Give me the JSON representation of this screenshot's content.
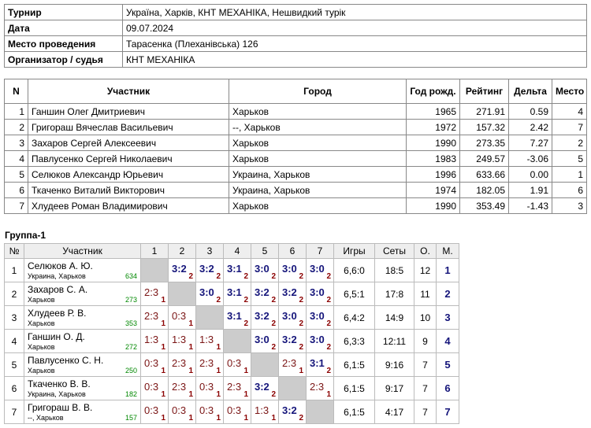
{
  "info": {
    "rows": [
      [
        "Турнир",
        "Україна, Харків, КНТ МЕХАНІКА, Нешвидкий турік"
      ],
      [
        "Дата",
        "09.07.2024"
      ],
      [
        "Место проведения",
        "Тарасенка (Плеханівська) 126"
      ],
      [
        "Организатор / судья",
        "КНТ МЕХАНІКА"
      ]
    ]
  },
  "participants": {
    "header": [
      "N",
      "Участник",
      "Город",
      "Год рожд.",
      "Рейтинг",
      "Дельта",
      "Место"
    ],
    "rows": [
      [
        "1",
        "Ганшин Олег Дмитриевич",
        "Харьков",
        "1965",
        "271.91",
        "0.59",
        "4"
      ],
      [
        "2",
        "Григораш Вячеслав Васильевич",
        "--, Харьков",
        "1972",
        "157.32",
        "2.42",
        "7"
      ],
      [
        "3",
        "Захаров Сергей Алексеевич",
        "Харьков",
        "1990",
        "273.35",
        "7.27",
        "2"
      ],
      [
        "4",
        "Павлусенко Сергей Николаевич",
        "Харьков",
        "1983",
        "249.57",
        "-3.06",
        "5"
      ],
      [
        "5",
        "Селюков Александр Юрьевич",
        "Украина, Харьков",
        "1996",
        "633.66",
        "0.00",
        "1"
      ],
      [
        "6",
        "Ткаченко Виталий Викторович",
        "Украина, Харьков",
        "1974",
        "182.05",
        "1.91",
        "6"
      ],
      [
        "7",
        "Хлудеев Роман Владимирович",
        "Харьков",
        "1990",
        "353.49",
        "-1.43",
        "3"
      ]
    ]
  },
  "group": {
    "title": "Группа-1",
    "header": [
      "№",
      "Участник",
      "1",
      "2",
      "3",
      "4",
      "5",
      "6",
      "7",
      "Игры",
      "Сеты",
      "О.",
      "М."
    ],
    "rows": [
      {
        "n": "1",
        "name": "Селюков А. Ю.",
        "city": "Украина, Харьков",
        "rating": "634",
        "cells": [
          null,
          [
            "3:2",
            "2"
          ],
          [
            "3:2",
            "2"
          ],
          [
            "3:1",
            "2"
          ],
          [
            "3:0",
            "2"
          ],
          [
            "3:0",
            "2"
          ],
          [
            "3:0",
            "2"
          ]
        ],
        "games": "6,6:0",
        "sets": "18:5",
        "points": "12",
        "place": "1"
      },
      {
        "n": "2",
        "name": "Захаров С. А.",
        "city": "Харьков",
        "rating": "273",
        "cells": [
          [
            "2:3",
            "1"
          ],
          null,
          [
            "3:0",
            "2"
          ],
          [
            "3:1",
            "2"
          ],
          [
            "3:2",
            "2"
          ],
          [
            "3:2",
            "2"
          ],
          [
            "3:0",
            "2"
          ]
        ],
        "games": "6,5:1",
        "sets": "17:8",
        "points": "11",
        "place": "2"
      },
      {
        "n": "3",
        "name": "Хлудеев Р. В.",
        "city": "Харьков",
        "rating": "353",
        "cells": [
          [
            "2:3",
            "1"
          ],
          [
            "0:3",
            "1"
          ],
          null,
          [
            "3:1",
            "2"
          ],
          [
            "3:2",
            "2"
          ],
          [
            "3:0",
            "2"
          ],
          [
            "3:0",
            "2"
          ]
        ],
        "games": "6,4:2",
        "sets": "14:9",
        "points": "10",
        "place": "3"
      },
      {
        "n": "4",
        "name": "Ганшин О. Д.",
        "city": "Харьков",
        "rating": "272",
        "cells": [
          [
            "1:3",
            "1"
          ],
          [
            "1:3",
            "1"
          ],
          [
            "1:3",
            "1"
          ],
          null,
          [
            "3:0",
            "2"
          ],
          [
            "3:2",
            "2"
          ],
          [
            "3:0",
            "2"
          ]
        ],
        "games": "6,3:3",
        "sets": "12:11",
        "points": "9",
        "place": "4"
      },
      {
        "n": "5",
        "name": "Павлусенко С. Н.",
        "city": "Харьков",
        "rating": "250",
        "cells": [
          [
            "0:3",
            "1"
          ],
          [
            "2:3",
            "1"
          ],
          [
            "2:3",
            "1"
          ],
          [
            "0:3",
            "1"
          ],
          null,
          [
            "2:3",
            "1"
          ],
          [
            "3:1",
            "2"
          ]
        ],
        "games": "6,1:5",
        "sets": "9:16",
        "points": "7",
        "place": "5"
      },
      {
        "n": "6",
        "name": "Ткаченко В. В.",
        "city": "Украина, Харьков",
        "rating": "182",
        "cells": [
          [
            "0:3",
            "1"
          ],
          [
            "2:3",
            "1"
          ],
          [
            "0:3",
            "1"
          ],
          [
            "2:3",
            "1"
          ],
          [
            "3:2",
            "2"
          ],
          null,
          [
            "2:3",
            "1"
          ]
        ],
        "games": "6,1:5",
        "sets": "9:17",
        "points": "7",
        "place": "6"
      },
      {
        "n": "7",
        "name": "Григораш В. В.",
        "city": "--, Харьков",
        "rating": "157",
        "cells": [
          [
            "0:3",
            "1"
          ],
          [
            "0:3",
            "1"
          ],
          [
            "0:3",
            "1"
          ],
          [
            "0:3",
            "1"
          ],
          [
            "1:3",
            "1"
          ],
          [
            "3:2",
            "2"
          ],
          null
        ],
        "games": "6,1:5",
        "sets": "4:17",
        "points": "7",
        "place": "7"
      }
    ]
  }
}
